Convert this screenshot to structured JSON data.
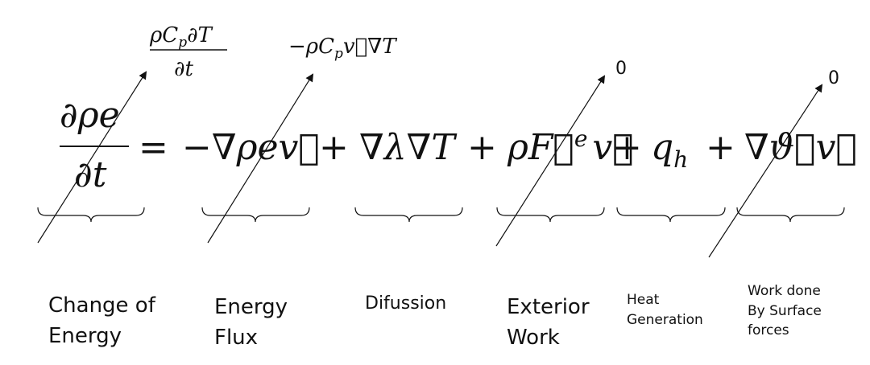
{
  "equation": {
    "lhs_numerator": "∂ρe",
    "lhs_denominator": "∂t",
    "equals": "=",
    "term_flux": "−∇ρev⃗",
    "plus1": "+",
    "term_diffusion": "∇λ∇T",
    "plus2": "+",
    "term_exterior_work": "ρF⃗",
    "term_exterior_work_sup": "e",
    "term_exterior_work_v": "v⃗",
    "plus3": "+",
    "term_heat": "q",
    "term_heat_sub": "h",
    "plus4": "+",
    "term_surface": "∇ϑ⃗v⃗"
  },
  "replacements": {
    "change_numerator": "ρC",
    "change_numerator_sub": "p",
    "change_numerator_tail": "∂T",
    "change_denominator": "∂t",
    "flux_head": "−ρC",
    "flux_sub": "p",
    "flux_tail": "v⃗∇T",
    "exterior_work_zero": "0",
    "surface_zero": "0"
  },
  "labels": {
    "change_line1": "Change of",
    "change_line2": "Energy",
    "flux_line1": "Energy",
    "flux_line2": "Flux",
    "diffusion": "Difussion",
    "exterior_line1": "Exterior",
    "exterior_line2": "Work",
    "heat_line1": "Heat",
    "heat_line2": "Generation",
    "surface_line1": "Work done",
    "surface_line2": "By Surface",
    "surface_line3": "forces"
  },
  "colors": {
    "ink": "#111111",
    "background": "#ffffff"
  }
}
